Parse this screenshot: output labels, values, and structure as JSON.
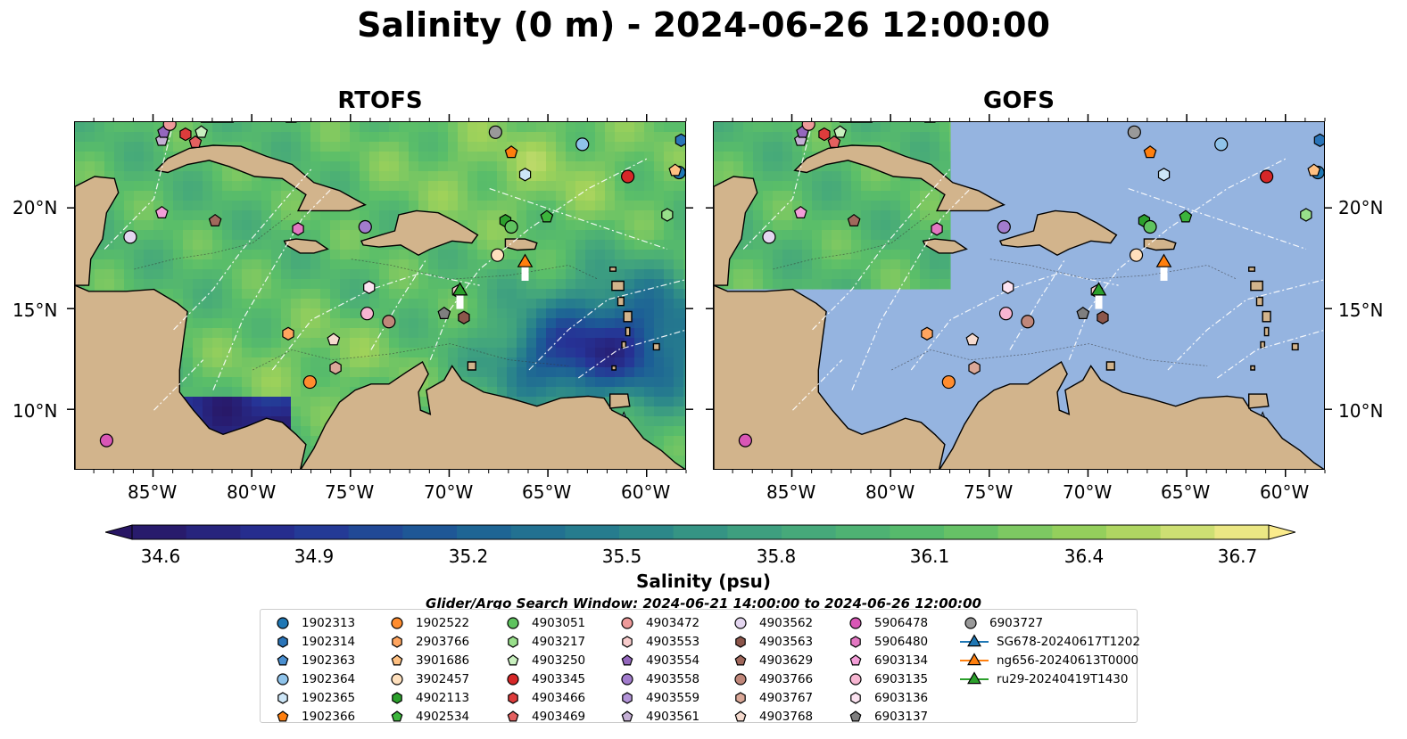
{
  "title": "Salinity (0 m) - 2024-06-26 12:00:00",
  "panels": [
    {
      "title": "RTOFS"
    },
    {
      "title": "GOFS"
    }
  ],
  "axes": {
    "lon_labels": [
      "85°W",
      "80°W",
      "75°W",
      "70°W",
      "65°W",
      "60°W"
    ],
    "lat_labels": [
      "20°N",
      "15°N",
      "10°N"
    ],
    "lon_range": [
      -89.0,
      -58.0
    ],
    "lat_range": [
      7.0,
      24.3
    ],
    "lon_ticks": [
      -85,
      -80,
      -75,
      -70,
      -65,
      -60
    ],
    "lat_ticks": [
      20,
      15,
      10
    ]
  },
  "colorbar": {
    "label": "Salinity (psu)",
    "tick_labels": [
      "34.6",
      "34.9",
      "35.2",
      "35.5",
      "35.8",
      "36.1",
      "36.4",
      "36.7"
    ],
    "min": 34.6,
    "max": 36.7,
    "extend": "both"
  },
  "colors": {
    "land": "#d2b48c",
    "gofs_ocean": "#95b4e0",
    "coast": "#000000",
    "eez": "#ffffff"
  },
  "search_window": "Glider/Argo Search Window: 2024-06-21 14:00:00 to 2024-06-26 12:00:00",
  "legend": [
    {
      "name": "1902313",
      "marker": "circle",
      "color": "#1f77b4"
    },
    {
      "name": "1902314",
      "marker": "hexagon",
      "color": "#2a74b8"
    },
    {
      "name": "1902363",
      "marker": "pentagon",
      "color": "#4a8fd0"
    },
    {
      "name": "1902364",
      "marker": "circle",
      "color": "#8fc3ea"
    },
    {
      "name": "1902365",
      "marker": "hexagon",
      "color": "#cde6f7"
    },
    {
      "name": "1902366",
      "marker": "pentagon",
      "color": "#ff7f0e"
    },
    {
      "name": "1902522",
      "marker": "circle",
      "color": "#ff8c2e"
    },
    {
      "name": "2903766",
      "marker": "hexagon",
      "color": "#ffa55f"
    },
    {
      "name": "3901686",
      "marker": "pentagon",
      "color": "#ffc081"
    },
    {
      "name": "3902457",
      "marker": "circle",
      "color": "#ffe0bd"
    },
    {
      "name": "4902113",
      "marker": "hexagon",
      "color": "#2ca02c"
    },
    {
      "name": "4902534",
      "marker": "pentagon",
      "color": "#3cb53c"
    },
    {
      "name": "4903051",
      "marker": "circle",
      "color": "#5fc35f"
    },
    {
      "name": "4903217",
      "marker": "hexagon",
      "color": "#98df8a"
    },
    {
      "name": "4903250",
      "marker": "pentagon",
      "color": "#c9f0bf"
    },
    {
      "name": "4903345",
      "marker": "circle",
      "color": "#d62728"
    },
    {
      "name": "4903466",
      "marker": "hexagon",
      "color": "#dd3c3c"
    },
    {
      "name": "4903469",
      "marker": "pentagon",
      "color": "#e46060"
    },
    {
      "name": "4903472",
      "marker": "circle",
      "color": "#ee9a9a"
    },
    {
      "name": "4903553",
      "marker": "hexagon",
      "color": "#f8cccc"
    },
    {
      "name": "4903554",
      "marker": "pentagon",
      "color": "#9467bd"
    },
    {
      "name": "4903558",
      "marker": "circle",
      "color": "#a27ccd"
    },
    {
      "name": "4903559",
      "marker": "hexagon",
      "color": "#b394d8"
    },
    {
      "name": "4903561",
      "marker": "pentagon",
      "color": "#c5b0d5"
    },
    {
      "name": "4903562",
      "marker": "circle",
      "color": "#e4d6f0"
    },
    {
      "name": "4903563",
      "marker": "hexagon",
      "color": "#8c564b"
    },
    {
      "name": "4903629",
      "marker": "pentagon",
      "color": "#a0685c"
    },
    {
      "name": "4903766",
      "marker": "circle",
      "color": "#c0877a"
    },
    {
      "name": "4903767",
      "marker": "hexagon",
      "color": "#daa898"
    },
    {
      "name": "4903768",
      "marker": "pentagon",
      "color": "#f5dace"
    },
    {
      "name": "5906478",
      "marker": "circle",
      "color": "#d957b6"
    },
    {
      "name": "5906480",
      "marker": "hexagon",
      "color": "#e377c2"
    },
    {
      "name": "6903134",
      "marker": "pentagon",
      "color": "#f49ed8"
    },
    {
      "name": "6903135",
      "marker": "circle",
      "color": "#f7b6d2"
    },
    {
      "name": "6903136",
      "marker": "hexagon",
      "color": "#fce3f1"
    },
    {
      "name": "6903137",
      "marker": "pentagon",
      "color": "#7f7f7f"
    },
    {
      "name": "6903727",
      "marker": "circle",
      "color": "#999999"
    },
    {
      "name": "SG678-20240617T1202",
      "marker": "triangle",
      "color": "#1f77b4"
    },
    {
      "name": "ng656-20240613T0000",
      "marker": "triangle",
      "color": "#ff7f0e"
    },
    {
      "name": "ru29-20240419T1430",
      "marker": "triangle",
      "color": "#2ca02c"
    }
  ],
  "floats": [
    {
      "id": "1902314",
      "lon": -58.3,
      "lat": 23.4
    },
    {
      "id": "1902313",
      "lon": -58.4,
      "lat": 21.8
    },
    {
      "id": "3901686",
      "lon": -58.6,
      "lat": 21.9
    },
    {
      "id": "1902364",
      "lon": -63.3,
      "lat": 23.2
    },
    {
      "id": "6903727",
      "lon": -67.7,
      "lat": 23.8
    },
    {
      "id": "1902366",
      "lon": -66.9,
      "lat": 22.8
    },
    {
      "id": "1902365",
      "lon": -66.2,
      "lat": 21.7
    },
    {
      "id": "4903345",
      "lon": -61.0,
      "lat": 21.6
    },
    {
      "id": "4903217",
      "lon": -59.0,
      "lat": 19.7
    },
    {
      "id": "4902534",
      "lon": -65.1,
      "lat": 19.6
    },
    {
      "id": "4902113",
      "lon": -67.2,
      "lat": 19.4
    },
    {
      "id": "4903051",
      "lon": -66.9,
      "lat": 19.1
    },
    {
      "id": "4903558",
      "lon": -74.3,
      "lat": 19.1
    },
    {
      "id": "3902457",
      "lon": -67.6,
      "lat": 17.7
    },
    {
      "id": "4903553",
      "lon": -69.6,
      "lat": 15.9
    },
    {
      "id": "6903137",
      "lon": -70.3,
      "lat": 14.8
    },
    {
      "id": "4903563",
      "lon": -69.3,
      "lat": 14.6
    },
    {
      "id": "6903136",
      "lon": -74.1,
      "lat": 16.1
    },
    {
      "id": "6903135",
      "lon": -74.2,
      "lat": 14.8
    },
    {
      "id": "4903766",
      "lon": -73.1,
      "lat": 14.4
    },
    {
      "id": "4903768",
      "lon": -75.9,
      "lat": 13.5
    },
    {
      "id": "2903766",
      "lon": -78.2,
      "lat": 13.8
    },
    {
      "id": "4903767",
      "lon": -75.8,
      "lat": 12.1
    },
    {
      "id": "1902522",
      "lon": -77.1,
      "lat": 11.4
    },
    {
      "id": "5906478",
      "lon": -87.4,
      "lat": 8.5
    },
    {
      "id": "6903134",
      "lon": -84.6,
      "lat": 19.8
    },
    {
      "id": "4903629",
      "lon": -81.9,
      "lat": 19.4
    },
    {
      "id": "4903562",
      "lon": -86.2,
      "lat": 18.6
    },
    {
      "id": "5906480",
      "lon": -77.7,
      "lat": 19.0
    },
    {
      "id": "4903561",
      "lon": -84.6,
      "lat": 23.4
    },
    {
      "id": "4903554",
      "lon": -84.5,
      "lat": 23.8
    },
    {
      "id": "4903472",
      "lon": -84.2,
      "lat": 24.2
    },
    {
      "id": "4903466",
      "lon": -83.4,
      "lat": 23.7
    },
    {
      "id": "4903469",
      "lon": -82.9,
      "lat": 23.3
    },
    {
      "id": "4903250",
      "lon": -82.6,
      "lat": 23.8
    }
  ],
  "gliders": [
    {
      "id": "ng656-20240613T0000",
      "lon": -66.2,
      "lat": 17.4
    },
    {
      "id": "ru29-20240419T1430",
      "lon": -69.5,
      "lat": 16.0
    }
  ]
}
